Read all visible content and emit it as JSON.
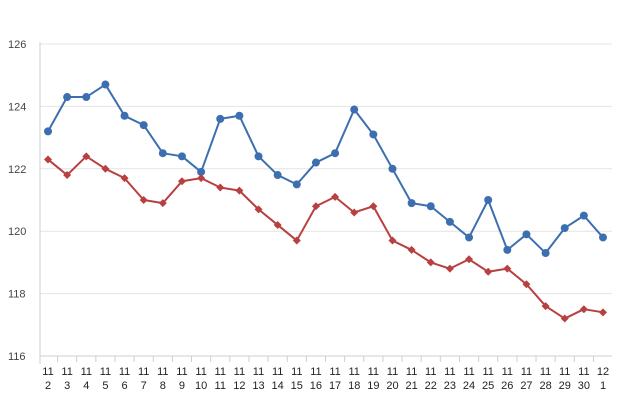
{
  "chart_data": {
    "type": "line",
    "categories": [
      [
        "11",
        "2"
      ],
      [
        "11",
        "3"
      ],
      [
        "11",
        "4"
      ],
      [
        "11",
        "5"
      ],
      [
        "11",
        "6"
      ],
      [
        "11",
        "7"
      ],
      [
        "11",
        "8"
      ],
      [
        "11",
        "9"
      ],
      [
        "11",
        "10"
      ],
      [
        "11",
        "11"
      ],
      [
        "11",
        "12"
      ],
      [
        "11",
        "13"
      ],
      [
        "11",
        "14"
      ],
      [
        "11",
        "15"
      ],
      [
        "11",
        "16"
      ],
      [
        "11",
        "17"
      ],
      [
        "11",
        "18"
      ],
      [
        "11",
        "19"
      ],
      [
        "11",
        "20"
      ],
      [
        "11",
        "21"
      ],
      [
        "11",
        "22"
      ],
      [
        "11",
        "23"
      ],
      [
        "11",
        "24"
      ],
      [
        "11",
        "25"
      ],
      [
        "11",
        "26"
      ],
      [
        "11",
        "27"
      ],
      [
        "11",
        "28"
      ],
      [
        "11",
        "29"
      ],
      [
        "11",
        "30"
      ],
      [
        "12",
        "1"
      ]
    ],
    "series": [
      {
        "color": "#3d6fb0",
        "marker": "circle",
        "values": [
          123.2,
          124.3,
          124.3,
          124.7,
          123.7,
          123.4,
          122.5,
          122.4,
          121.9,
          123.6,
          123.7,
          122.4,
          121.8,
          121.5,
          122.2,
          122.5,
          123.9,
          123.1,
          122.0,
          120.9,
          120.8,
          120.3,
          119.8,
          121.0,
          119.4,
          119.9,
          119.3,
          120.1,
          120.5,
          119.8
        ]
      },
      {
        "color": "#b84040",
        "marker": "diamond",
        "values": [
          122.3,
          121.8,
          122.4,
          122.0,
          121.7,
          121.0,
          120.9,
          121.6,
          121.7,
          121.4,
          121.3,
          120.7,
          120.2,
          119.7,
          120.8,
          121.1,
          120.6,
          120.8,
          119.7,
          119.4,
          119.0,
          118.8,
          119.1,
          118.7,
          118.8,
          118.3,
          117.6,
          117.2,
          117.5,
          117.4
        ]
      }
    ],
    "ylim": [
      116,
      126
    ],
    "yticks": [
      116,
      118,
      120,
      122,
      124,
      126
    ],
    "grid": true,
    "legend": "none"
  }
}
